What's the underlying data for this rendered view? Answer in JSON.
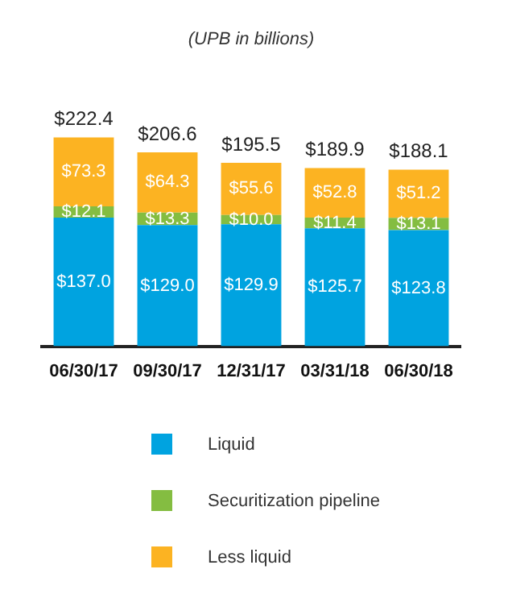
{
  "chart_data": {
    "type": "bar",
    "title": "(UPB in billions)",
    "stacked": true,
    "legend": "bottom",
    "categories": [
      "06/30/17",
      "09/30/17",
      "12/31/17",
      "03/31/18",
      "06/30/18"
    ],
    "series": [
      {
        "name": "Liquid",
        "color": "#00a3e0",
        "values": [
          137.0,
          129.0,
          129.9,
          125.7,
          123.8
        ],
        "value_labels": [
          "$137.0",
          "$129.0",
          "$129.9",
          "$125.7",
          "$123.8"
        ]
      },
      {
        "name": "Securitization pipeline",
        "color": "#84bd41",
        "values": [
          12.1,
          13.3,
          10.0,
          11.4,
          13.1
        ],
        "value_labels": [
          "$12.1",
          "$13.3",
          "$10.0",
          "$11.4",
          "$13.1"
        ]
      },
      {
        "name": "Less liquid",
        "color": "#fcb322",
        "values": [
          73.3,
          64.3,
          55.6,
          52.8,
          51.2
        ],
        "value_labels": [
          "$73.3",
          "$64.3",
          "$55.6",
          "$52.8",
          "$51.2"
        ]
      }
    ],
    "totals": [
      "$222.4",
      "$206.6",
      "$195.5",
      "$189.9",
      "$188.1"
    ]
  }
}
